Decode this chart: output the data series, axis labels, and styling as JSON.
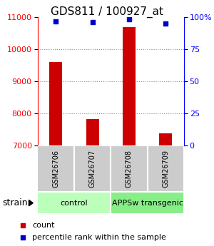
{
  "title": "GDS811 / 100927_at",
  "samples": [
    "GSM26706",
    "GSM26707",
    "GSM26708",
    "GSM26709"
  ],
  "count_values": [
    9600,
    7820,
    10700,
    7380
  ],
  "percentile_values": [
    97,
    96,
    98.5,
    95
  ],
  "ylim_left": [
    7000,
    11000
  ],
  "ylim_right": [
    0,
    100
  ],
  "yticks_left": [
    7000,
    8000,
    9000,
    10000,
    11000
  ],
  "yticks_right": [
    0,
    25,
    50,
    75,
    100
  ],
  "bar_color": "#cc0000",
  "dot_color": "#0000cc",
  "bar_bottom": 7000,
  "bar_width": 0.35,
  "groups": [
    {
      "label": "control",
      "samples": [
        0,
        1
      ],
      "color": "#bbffbb"
    },
    {
      "label": "APPSw transgenic",
      "samples": [
        2,
        3
      ],
      "color": "#88ee88"
    }
  ],
  "strain_label": "strain",
  "legend_count_label": "count",
  "legend_pct_label": "percentile rank within the sample",
  "title_fontsize": 11,
  "tick_fontsize": 8,
  "sample_fontsize": 7,
  "group_fontsize": 8,
  "legend_fontsize": 8,
  "background_color": "#ffffff",
  "grid_color": "#888888"
}
